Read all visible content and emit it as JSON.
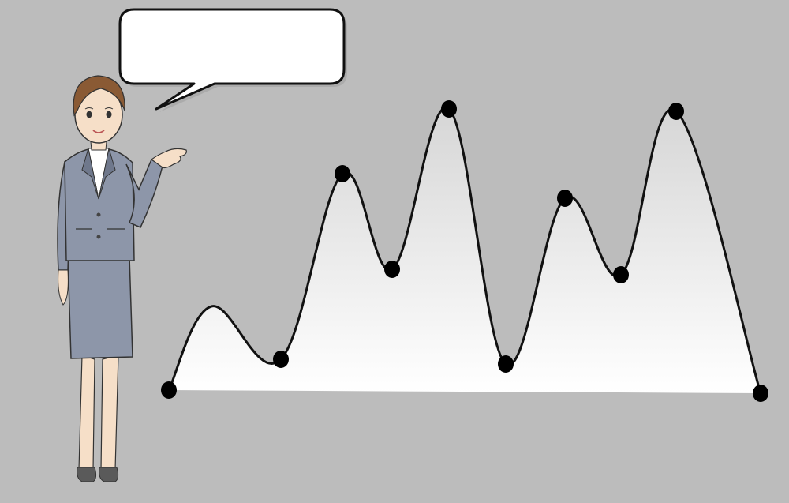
{
  "speech_bubble": {
    "text": ""
  },
  "colors": {
    "background": "#bcbcbc",
    "curve_stroke": "#111111",
    "point_fill": "#000000",
    "area_top": "#d6d6d6",
    "area_bottom": "#ffffff",
    "bubble_fill": "#ffffff",
    "suit": "#8d96a9",
    "suit_shadow": "#6f788c",
    "hair": "#8a5a34",
    "skin": "#f6dfc8",
    "shirt": "#ffffff",
    "shoes": "#5a5a5a"
  },
  "illustration": {
    "figure": "businesswoman-presenter",
    "gesture": "open-palm-presenting",
    "chart_style": "smooth-curve-with-markers",
    "marker_count": 10,
    "axes_shown": false,
    "grid_shown": false,
    "labels_shown": false
  }
}
